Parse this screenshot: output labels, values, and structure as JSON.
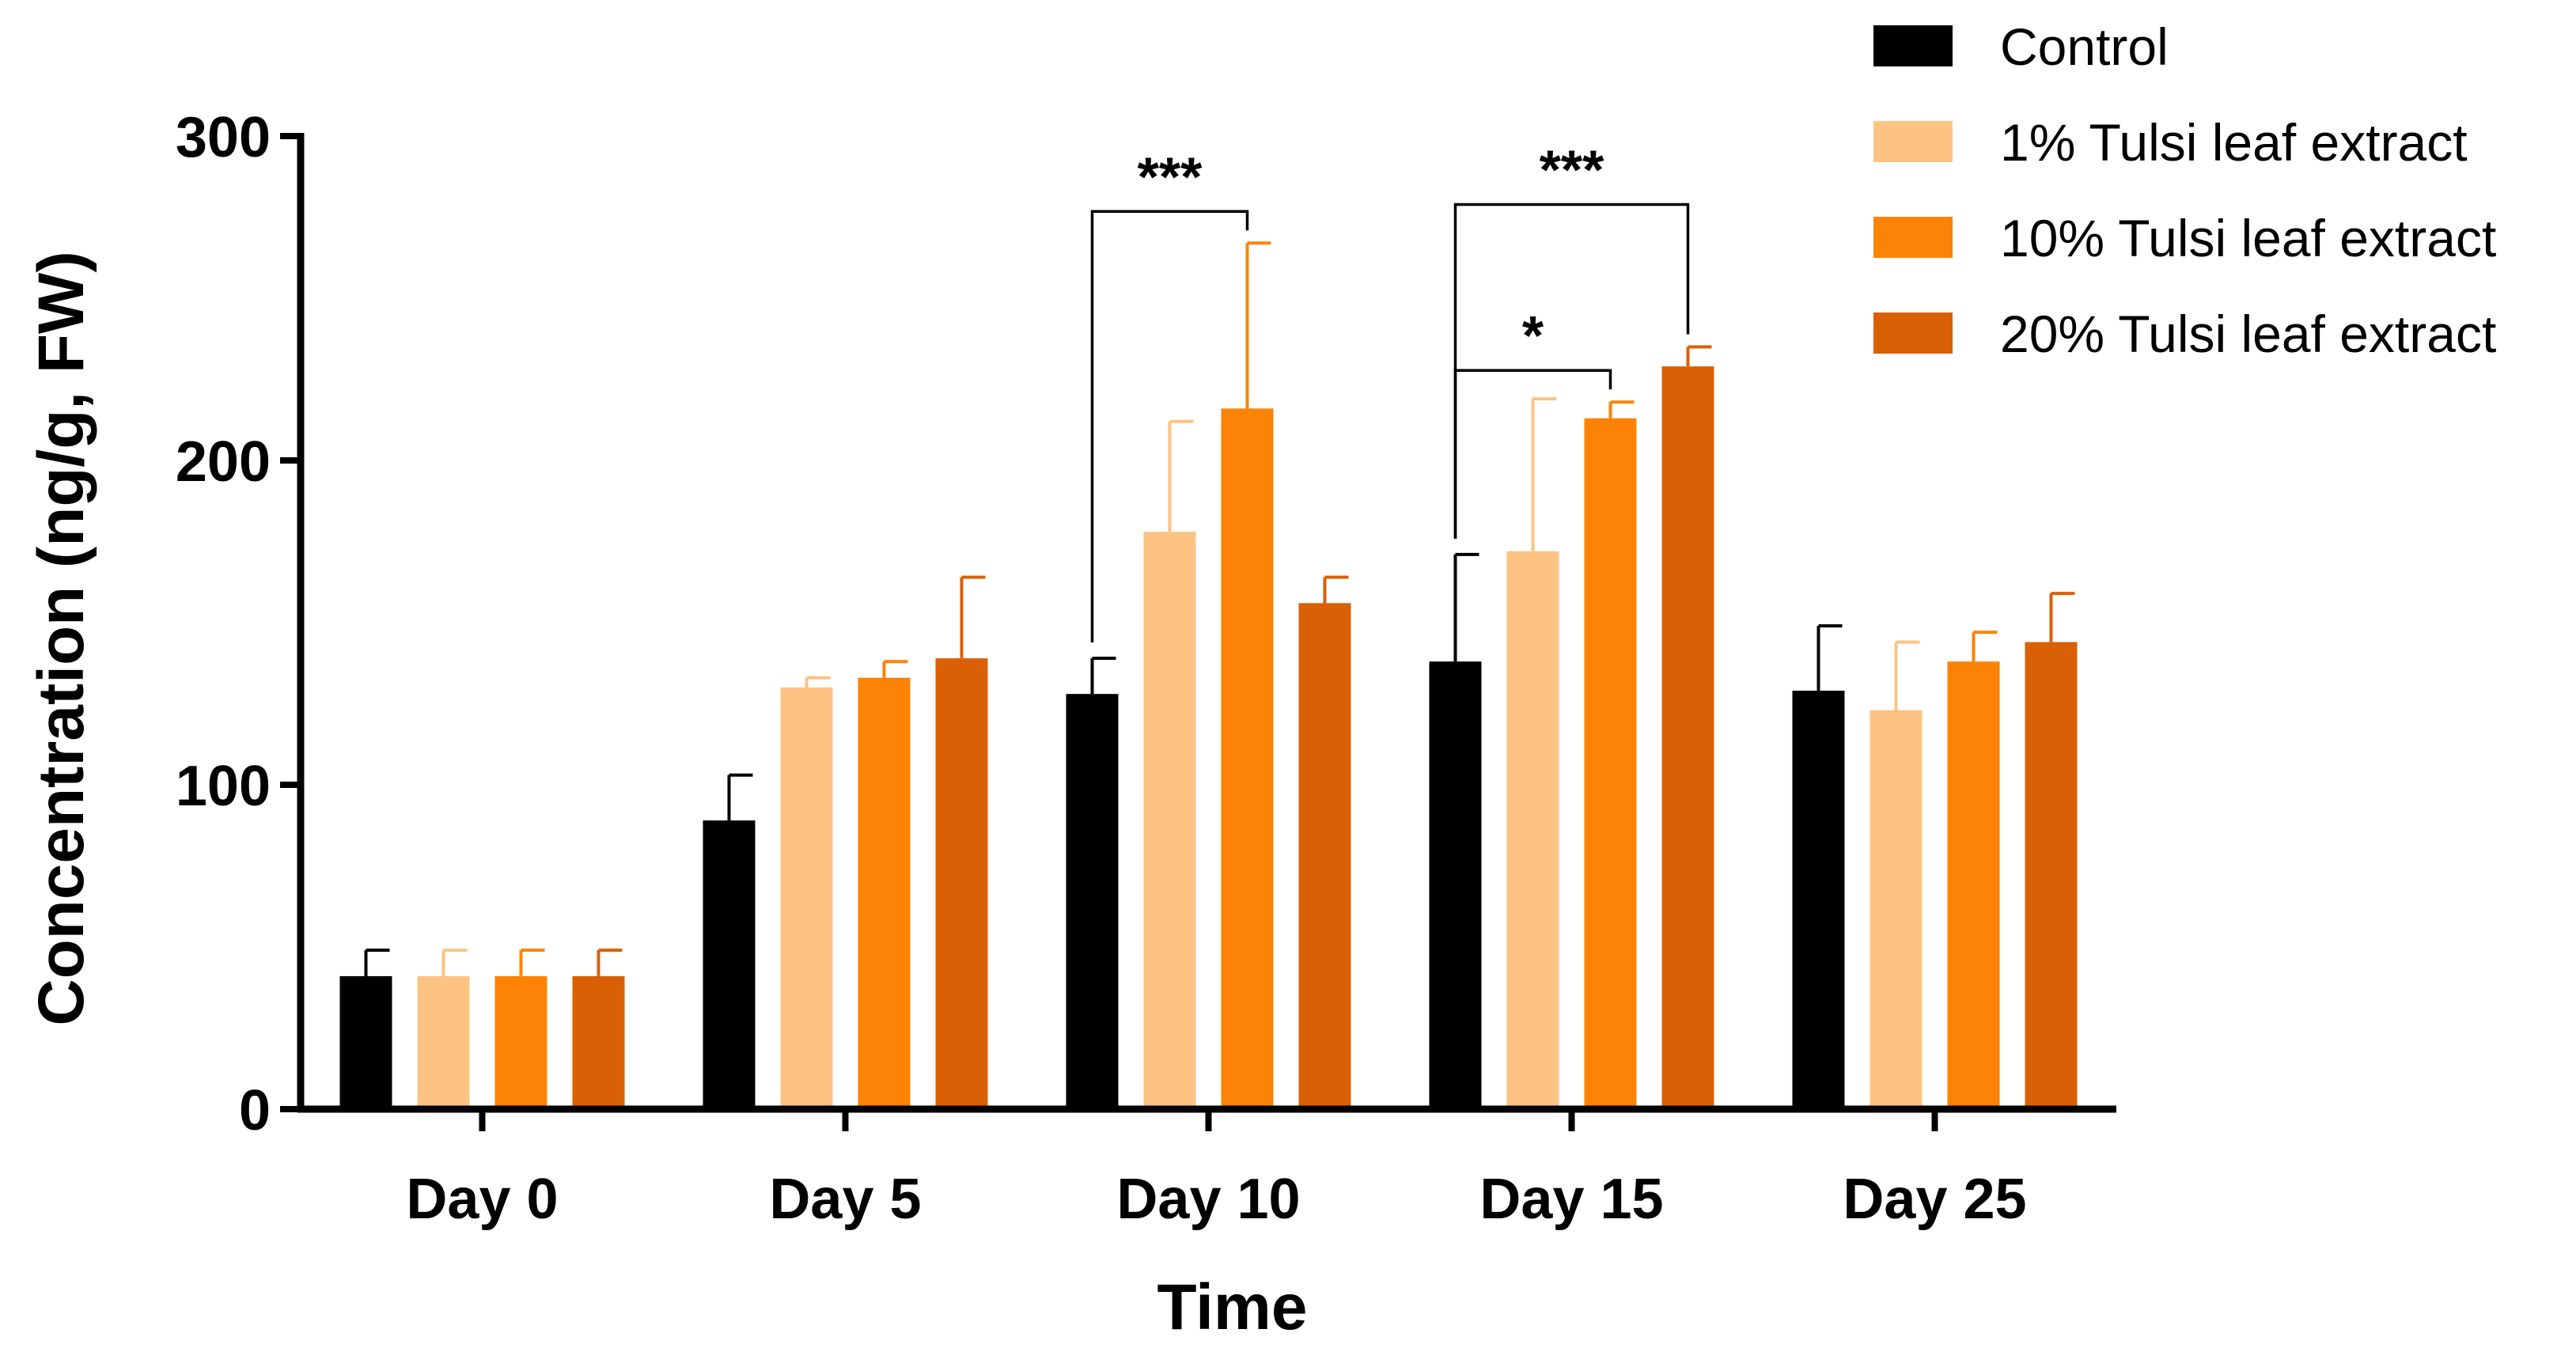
{
  "chart_data": {
    "type": "bar",
    "title": "",
    "xlabel": "Time",
    "ylabel": "Concentration (ng/g, FW)",
    "ylim": [
      0,
      300
    ],
    "yticks": [
      0,
      100,
      200,
      300
    ],
    "categories": [
      "Day 0",
      "Day 5",
      "Day 10",
      "Day 15",
      "Day 25"
    ],
    "series": [
      {
        "name": "Control",
        "color": "#000000",
        "values": [
          41,
          89,
          128,
          138,
          129
        ],
        "errors": [
          8,
          14,
          11,
          33,
          20
        ]
      },
      {
        "name": "1% Tulsi leaf extract",
        "color": "#FDC383",
        "values": [
          41,
          130,
          178,
          172,
          123
        ],
        "errors": [
          8,
          3,
          34,
          47,
          21
        ]
      },
      {
        "name": "10% Tulsi leaf extract",
        "color": "#FD8306",
        "values": [
          41,
          133,
          216,
          213,
          138
        ],
        "errors": [
          8,
          5,
          51,
          5,
          9
        ]
      },
      {
        "name": "20% Tulsi leaf extract",
        "color": "#DA6006",
        "values": [
          41,
          139,
          156,
          229,
          144
        ],
        "errors": [
          8,
          25,
          8,
          6,
          15
        ]
      }
    ],
    "significance": [
      {
        "category": "Day 10",
        "from_series": 0,
        "to_series": 2,
        "label": "***",
        "level": 1
      },
      {
        "category": "Day 15",
        "from_series": 0,
        "to_series": 3,
        "label": "***",
        "level": 2
      },
      {
        "category": "Day 15",
        "from_series": 0,
        "to_series": 2,
        "label": "*",
        "level": 1
      }
    ],
    "legend_position": "top-right",
    "grid": false
  }
}
